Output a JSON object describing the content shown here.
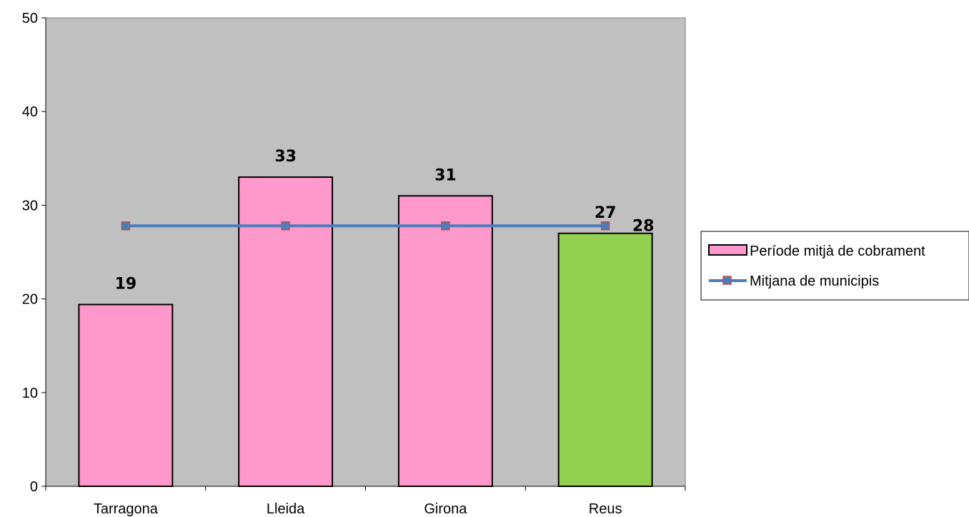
{
  "chart_data": {
    "type": "bar",
    "categories": [
      "Tarragona",
      "Lleida",
      "Girona",
      "Reus"
    ],
    "series": [
      {
        "name": "Període mitjà de cobrament",
        "type": "bar",
        "values": [
          19.4,
          33,
          31,
          27
        ],
        "data_labels": [
          "19",
          "33",
          "31",
          "27"
        ],
        "colors": [
          "#ff99cc",
          "#ff99cc",
          "#ff99cc",
          "#92d050"
        ]
      },
      {
        "name": "Mitjana de municipis",
        "type": "line",
        "values": [
          27.8,
          27.8,
          27.8,
          27.8
        ],
        "data_label_last": "28",
        "color": "#4a7ebb",
        "marker_fill": "#4a7ebb",
        "marker_border": "#c0504d"
      }
    ],
    "ylim": [
      0,
      50
    ],
    "yticks": [
      0,
      10,
      20,
      30,
      40,
      50
    ],
    "plot_background": "#c0c0c0",
    "grid": false,
    "legend_position": "right"
  }
}
